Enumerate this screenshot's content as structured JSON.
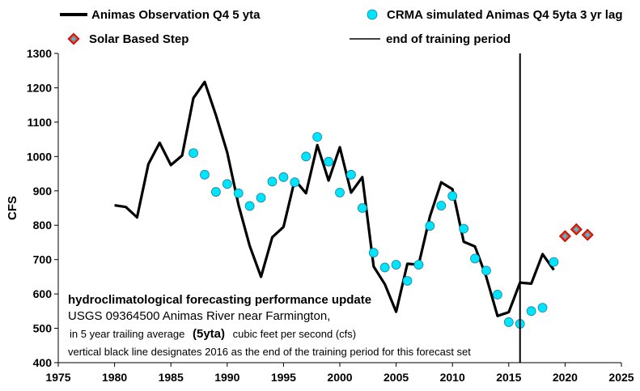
{
  "chart_data": {
    "type": "line",
    "ylabel": "CFS",
    "xlabel": "",
    "xlim": [
      1975,
      2025
    ],
    "ylim": [
      400,
      1300
    ],
    "x_ticks": [
      1975,
      1980,
      1985,
      1990,
      1995,
      2000,
      2005,
      2010,
      2015,
      2020,
      2025
    ],
    "y_ticks": [
      400,
      500,
      600,
      700,
      800,
      900,
      1000,
      1100,
      1200,
      1300
    ],
    "grid": false,
    "legend_position": "top",
    "series": [
      {
        "name": "Animas Observation Q4 5 yta",
        "style": "line",
        "color": "#000000",
        "points": [
          [
            1980,
            858
          ],
          [
            1981,
            853
          ],
          [
            1982,
            823
          ],
          [
            1983,
            978
          ],
          [
            1984,
            1040
          ],
          [
            1985,
            975
          ],
          [
            1986,
            1003
          ],
          [
            1987,
            1170
          ],
          [
            1988,
            1217
          ],
          [
            1989,
            1120
          ],
          [
            1990,
            1012
          ],
          [
            1991,
            860
          ],
          [
            1992,
            740
          ],
          [
            1993,
            650
          ],
          [
            1994,
            765
          ],
          [
            1995,
            795
          ],
          [
            1996,
            932
          ],
          [
            1997,
            893
          ],
          [
            1998,
            1033
          ],
          [
            1999,
            930
          ],
          [
            2000,
            1027
          ],
          [
            2001,
            895
          ],
          [
            2002,
            940
          ],
          [
            2003,
            680
          ],
          [
            2004,
            628
          ],
          [
            2005,
            548
          ],
          [
            2006,
            688
          ],
          [
            2007,
            685
          ],
          [
            2008,
            826
          ],
          [
            2009,
            925
          ],
          [
            2010,
            905
          ],
          [
            2011,
            752
          ],
          [
            2012,
            738
          ],
          [
            2013,
            650
          ],
          [
            2014,
            536
          ],
          [
            2015,
            547
          ],
          [
            2016,
            633
          ],
          [
            2017,
            630
          ],
          [
            2018,
            716
          ],
          [
            2019,
            670
          ]
        ]
      },
      {
        "name": "CRMA simulated Animas Q4 5yta 3 yr lag",
        "style": "scatter",
        "color": "#00e5ff",
        "points": [
          [
            1987,
            1010
          ],
          [
            1988,
            947
          ],
          [
            1989,
            897
          ],
          [
            1990,
            920
          ],
          [
            1991,
            893
          ],
          [
            1992,
            856
          ],
          [
            1993,
            880
          ],
          [
            1994,
            927
          ],
          [
            1995,
            940
          ],
          [
            1996,
            925
          ],
          [
            1997,
            1000
          ],
          [
            1998,
            1057
          ],
          [
            1999,
            985
          ],
          [
            2000,
            895
          ],
          [
            2001,
            947
          ],
          [
            2002,
            850
          ],
          [
            2003,
            720
          ],
          [
            2004,
            677
          ],
          [
            2005,
            685
          ],
          [
            2006,
            638
          ],
          [
            2007,
            685
          ],
          [
            2008,
            798
          ],
          [
            2009,
            857
          ],
          [
            2010,
            885
          ],
          [
            2011,
            790
          ],
          [
            2012,
            703
          ],
          [
            2013,
            668
          ],
          [
            2014,
            598
          ],
          [
            2015,
            518
          ],
          [
            2016,
            513
          ],
          [
            2017,
            550
          ],
          [
            2018,
            560
          ],
          [
            2019,
            693
          ]
        ]
      },
      {
        "name": "Solar Based Step",
        "style": "diamond",
        "color": "#f03c2a",
        "points": [
          [
            2020,
            768
          ],
          [
            2021,
            788
          ],
          [
            2022,
            772
          ]
        ]
      },
      {
        "name": "end of training period",
        "style": "vline",
        "color": "#000000",
        "x": 2016
      }
    ],
    "annotation": {
      "title": "hydroclimatological forecasting performance update",
      "line1": "USGS 09364500 Animas River near Farmington,",
      "line2_pre": "in 5 year trailing  average",
      "line2_bold": "(5yta)",
      "line2_post": "cubic feet per second (cfs)",
      "line3": "vertical black line designates  2016  as the end of the training  period for this forecast set"
    }
  }
}
